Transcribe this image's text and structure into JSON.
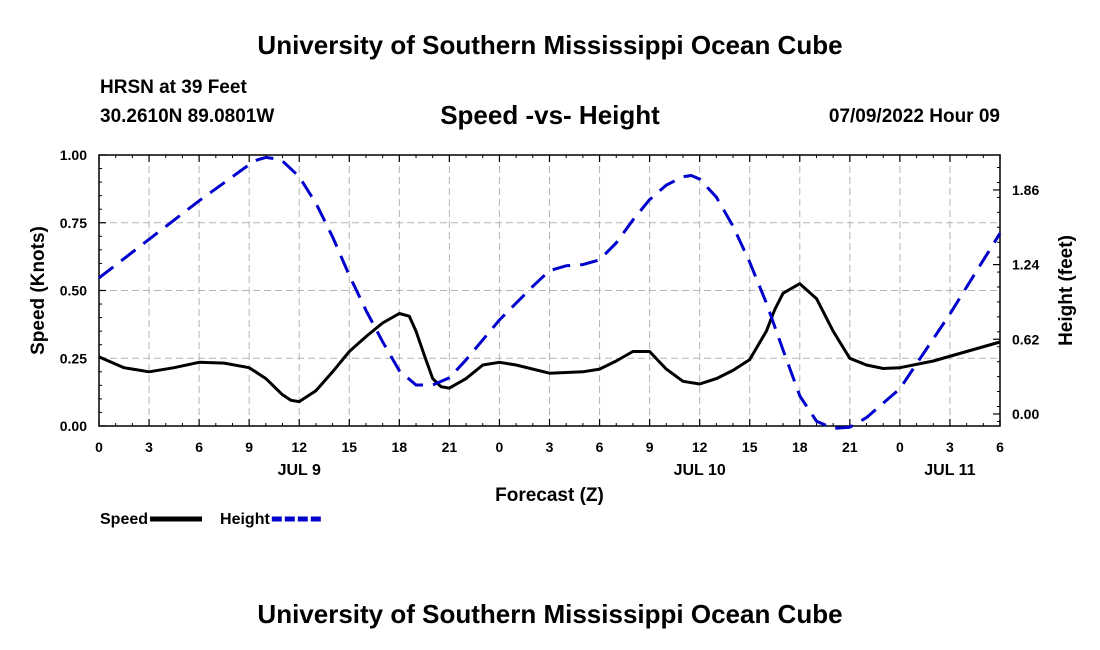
{
  "page": {
    "top_title": "University of Southern Mississippi Ocean Cube",
    "bottom_title": "University of Southern Mississippi Ocean Cube",
    "station": "HRSN at 39 Feet",
    "coords": "30.2610N  89.0801W",
    "datetime": "07/09/2022 Hour 09"
  },
  "chart_data": {
    "type": "line",
    "title": "Speed -vs- Height",
    "xlabel": "Forecast (Z)",
    "ylabel": "Speed (Knots)",
    "y2label": "Height (feet)",
    "xlim": [
      0,
      54
    ],
    "ylim": [
      0,
      1.0
    ],
    "y2lim": [
      -0.1,
      2.15
    ],
    "x_ticks": [
      0,
      3,
      6,
      9,
      12,
      15,
      18,
      21,
      24,
      27,
      30,
      33,
      36,
      39,
      42,
      45,
      48,
      51,
      54
    ],
    "x_tick_labels": [
      "0",
      "3",
      "6",
      "9",
      "12",
      "15",
      "18",
      "21",
      "0",
      "3",
      "6",
      "9",
      "12",
      "15",
      "18",
      "21",
      "0",
      "3",
      "6"
    ],
    "y_ticks": [
      0,
      0.25,
      0.5,
      0.75,
      1.0
    ],
    "y_tick_labels": [
      "0.00",
      "0.25",
      "0.50",
      "0.75",
      "1.00"
    ],
    "y2_ticks": [
      0,
      0.62,
      1.24,
      1.86
    ],
    "y2_tick_labels": [
      "0.00",
      "0.62",
      "1.24",
      "1.86"
    ],
    "day_labels": [
      {
        "x": 12,
        "label": "JUL 9"
      },
      {
        "x": 36,
        "label": "JUL 10"
      },
      {
        "x": 51,
        "label": "JUL 11"
      }
    ],
    "grid": true,
    "legend_position": "bottom-left",
    "series": [
      {
        "name": "Speed",
        "axis": "left",
        "color": "#000000",
        "style": "solid",
        "x": [
          0,
          1.5,
          3,
          4.5,
          6,
          7.5,
          9,
          10,
          11,
          11.5,
          12,
          13,
          14,
          15,
          16,
          17,
          18,
          18.6,
          19,
          19.5,
          20,
          20.5,
          21,
          22,
          23,
          24,
          25,
          27,
          29,
          30,
          31,
          32,
          33,
          34,
          35,
          36,
          37,
          38,
          39,
          40,
          40.5,
          41,
          42,
          43,
          44,
          45,
          46,
          47,
          48,
          50,
          52,
          54
        ],
        "values": [
          0.255,
          0.215,
          0.2,
          0.215,
          0.235,
          0.232,
          0.215,
          0.175,
          0.115,
          0.095,
          0.09,
          0.13,
          0.2,
          0.275,
          0.33,
          0.38,
          0.415,
          0.405,
          0.35,
          0.26,
          0.175,
          0.145,
          0.14,
          0.175,
          0.225,
          0.235,
          0.225,
          0.195,
          0.2,
          0.21,
          0.24,
          0.275,
          0.275,
          0.21,
          0.165,
          0.155,
          0.175,
          0.205,
          0.245,
          0.35,
          0.43,
          0.49,
          0.525,
          0.47,
          0.35,
          0.25,
          0.225,
          0.212,
          0.215,
          0.24,
          0.275,
          0.31
        ]
      },
      {
        "name": "Height",
        "axis": "right",
        "color": "#0000cc",
        "style": "dashed",
        "x": [
          0,
          3,
          6,
          8,
          9,
          9.5,
          10,
          10.5,
          11,
          12,
          13,
          14,
          15,
          16,
          17,
          18,
          19,
          20,
          21,
          22,
          24,
          26,
          27,
          28,
          29,
          30,
          31,
          32,
          33,
          34,
          35,
          35.5,
          36,
          37,
          38,
          39,
          40,
          41,
          42,
          43,
          44,
          45,
          46,
          48,
          51,
          54
        ],
        "values": [
          1.13,
          1.45,
          1.77,
          1.97,
          2.07,
          2.11,
          2.13,
          2.12,
          2.1,
          1.97,
          1.75,
          1.47,
          1.15,
          0.86,
          0.6,
          0.36,
          0.24,
          0.24,
          0.3,
          0.45,
          0.78,
          1.06,
          1.19,
          1.23,
          1.24,
          1.28,
          1.42,
          1.61,
          1.78,
          1.9,
          1.97,
          1.98,
          1.95,
          1.8,
          1.56,
          1.26,
          0.92,
          0.53,
          0.15,
          -0.06,
          -0.12,
          -0.11,
          -0.03,
          0.21,
          0.83,
          1.5
        ]
      }
    ]
  }
}
